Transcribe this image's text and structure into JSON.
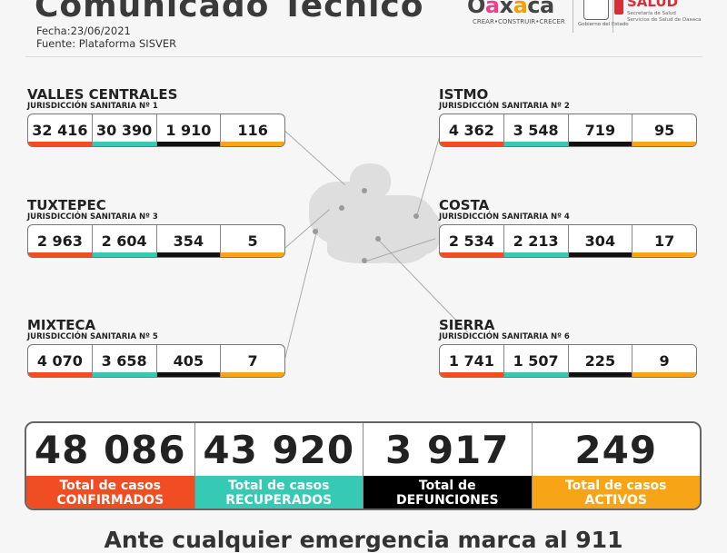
{
  "header": {
    "title": "Comunicado Técnico",
    "date": "Fecha:23/06/2021",
    "source": "Fuente: Plataforma SISVER"
  },
  "logos": {
    "oaxaca_tagline": "CREAR•CONSTRUIR•CRECER",
    "gobierno": "Gobierno del Estado",
    "salud": "SALUD",
    "salud_sub1": "Secretaría de Salud",
    "salud_sub2": "Servicios de Salud de Oaxaca"
  },
  "colors": {
    "confirmed": "#f04d23",
    "recovered": "#36c9b4",
    "deaths": "#111111",
    "active": "#f7a416"
  },
  "regions": [
    {
      "name": "VALLES CENTRALES",
      "sub": "JURISDICCIÓN SANITARIA Nº 1",
      "values": [
        "32 416",
        "30 390",
        "1 910",
        "116"
      ]
    },
    {
      "name": "ISTMO",
      "sub": "JURISDICCIÓN SANITARIA Nº 2",
      "values": [
        "4 362",
        "3 548",
        "719",
        "95"
      ]
    },
    {
      "name": "TUXTEPEC",
      "sub": "JURISDICCIÓN SANITARIA Nº 3",
      "values": [
        "2 963",
        "2 604",
        "354",
        "5"
      ]
    },
    {
      "name": "COSTA",
      "sub": "JURISDICCIÓN SANITARIA Nº 4",
      "values": [
        "2 534",
        "2 213",
        "304",
        "17"
      ]
    },
    {
      "name": "MIXTECA",
      "sub": "JURISDICCIÓN SANITARIA Nº 5",
      "values": [
        "4 070",
        "3 658",
        "405",
        "7"
      ]
    },
    {
      "name": "SIERRA",
      "sub": "JURISDICCIÓN SANITARIA Nº 6",
      "values": [
        "1 741",
        "1 507",
        "225",
        "9"
      ]
    }
  ],
  "totals": [
    {
      "value": "48 086",
      "line1": "Total de casos",
      "line2": "CONFIRMADOS"
    },
    {
      "value": "43 920",
      "line1": "Total de casos",
      "line2": "RECUPERADOS"
    },
    {
      "value": "3 917",
      "line1": "Total de",
      "line2": "DEFUNCIONES"
    },
    {
      "value": "249",
      "line1": "Total de casos",
      "line2": "ACTIVOS"
    }
  ],
  "footer": {
    "message": "Ante cualquier emergencia marca al 911"
  }
}
